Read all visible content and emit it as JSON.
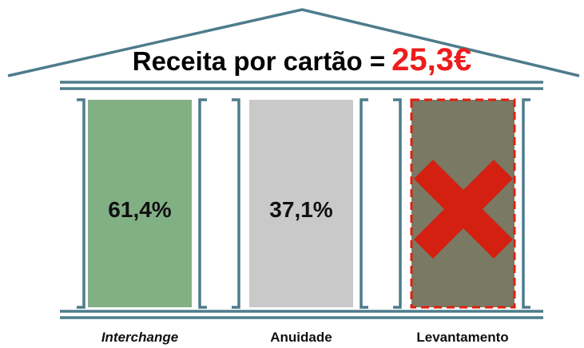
{
  "header": {
    "title": "Receita por cartão =",
    "value": "25,3€"
  },
  "pillars": [
    {
      "label": "Interchange",
      "value": "61,4%"
    },
    {
      "label": "Anuidade",
      "value": "37,1%"
    },
    {
      "label": "Levantamento"
    }
  ]
}
